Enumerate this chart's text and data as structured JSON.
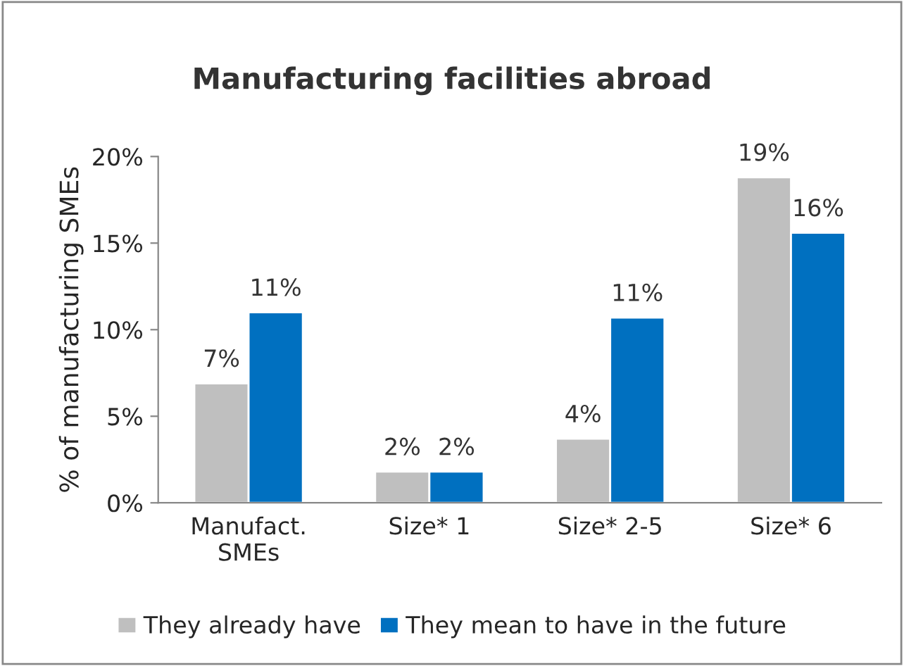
{
  "chart_data": {
    "type": "bar",
    "title": "Manufacturing facilities abroad",
    "ylabel": "% of manufacturing SMEs",
    "categories": [
      "Manufact.\nSMEs",
      "Size* 1",
      "Size* 2-5",
      "Size* 6"
    ],
    "series": [
      {
        "name": "They already have",
        "color": "#bfbfbf",
        "values": [
          6.9,
          1.8,
          3.7,
          18.8
        ],
        "value_labels": [
          "7%",
          "2%",
          "4%",
          "19%"
        ]
      },
      {
        "name": "They mean to have in the future",
        "color": "#0070c0",
        "values": [
          11.0,
          1.8,
          10.7,
          15.6
        ],
        "value_labels": [
          "11%",
          "2%",
          "11%",
          "16%"
        ]
      }
    ],
    "ylim": [
      0,
      20
    ],
    "yticks": [
      {
        "value": 0,
        "label": "0%"
      },
      {
        "value": 5,
        "label": "5%"
      },
      {
        "value": 10,
        "label": "10%"
      },
      {
        "value": 15,
        "label": "15%"
      },
      {
        "value": 20,
        "label": "20%"
      }
    ],
    "grid": false,
    "legend": "bottom"
  }
}
